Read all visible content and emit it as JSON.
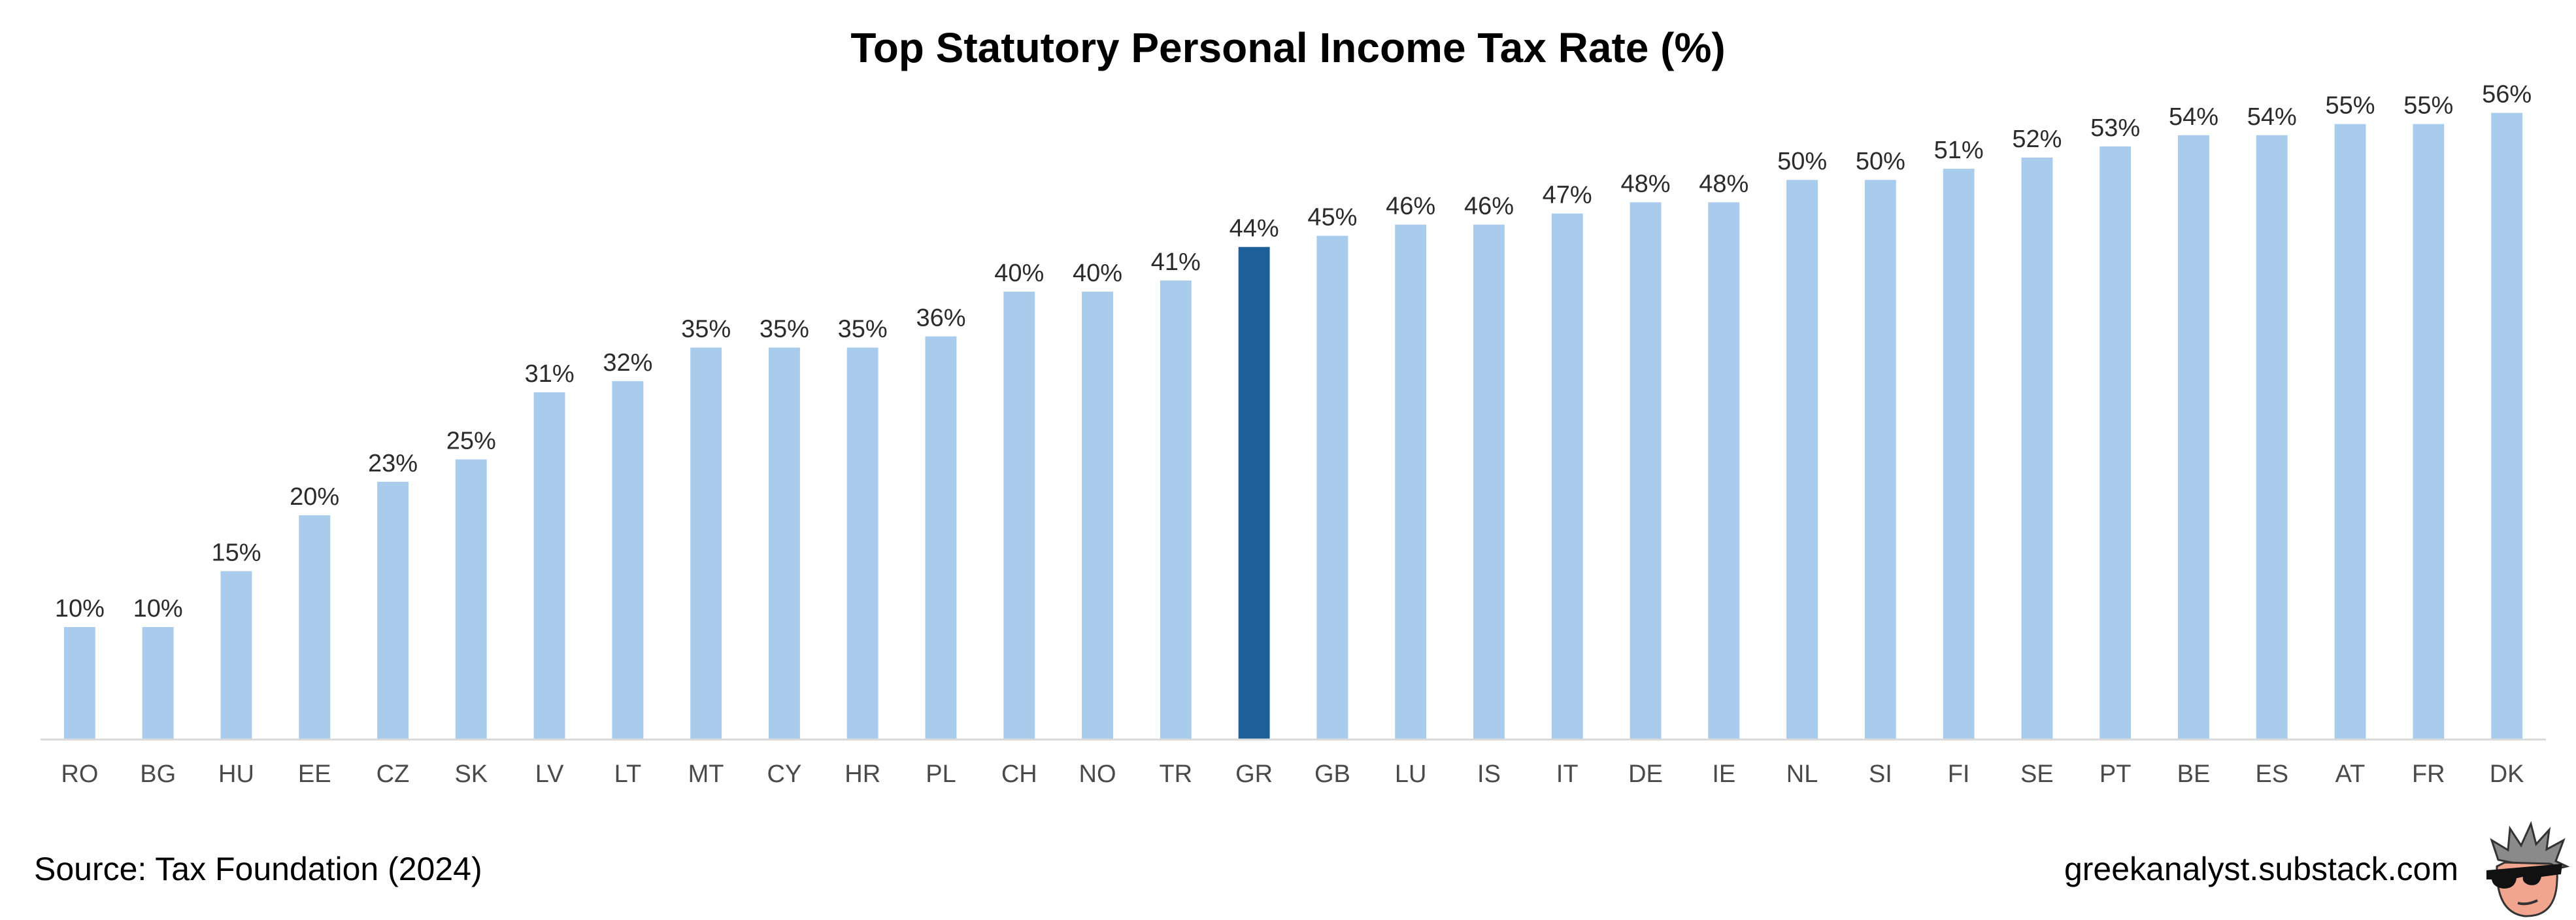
{
  "chart_data": {
    "type": "bar",
    "title": "Top Statutory Personal Income Tax Rate (%)",
    "xlabel": "",
    "ylabel": "",
    "ylim": [
      0,
      62
    ],
    "grid": false,
    "legend": "none",
    "categories": [
      "RO",
      "BG",
      "HU",
      "EE",
      "CZ",
      "SK",
      "LV",
      "LT",
      "MT",
      "CY",
      "HR",
      "PL",
      "CH",
      "NO",
      "TR",
      "GR",
      "GB",
      "LU",
      "IS",
      "IT",
      "DE",
      "IE",
      "NL",
      "SI",
      "FI",
      "SE",
      "PT",
      "BE",
      "ES",
      "AT",
      "FR",
      "DK"
    ],
    "values": [
      10,
      10,
      15,
      20,
      23,
      25,
      31,
      32,
      35,
      35,
      35,
      36,
      40,
      40,
      41,
      44,
      45,
      46,
      46,
      47,
      48,
      48,
      50,
      50,
      51,
      52,
      53,
      54,
      54,
      55,
      55,
      56
    ],
    "value_labels": [
      "10%",
      "10%",
      "15%",
      "20%",
      "23%",
      "25%",
      "31%",
      "32%",
      "35%",
      "35%",
      "35%",
      "36%",
      "40%",
      "40%",
      "41%",
      "44%",
      "45%",
      "46%",
      "46%",
      "47%",
      "48%",
      "48%",
      "50%",
      "50%",
      "51%",
      "52%",
      "53%",
      "54%",
      "54%",
      "55%",
      "55%",
      "56%"
    ],
    "highlight_category": "GR",
    "colors": {
      "bar": "#a9cbec",
      "highlight": "#1f5f99",
      "axis": "#d9d9d9"
    }
  },
  "footer": {
    "source": "Source: Tax Foundation (2024)",
    "site": "greekanalyst.substack.com"
  },
  "icons": {
    "mascot": "sunglasses-face-icon"
  }
}
